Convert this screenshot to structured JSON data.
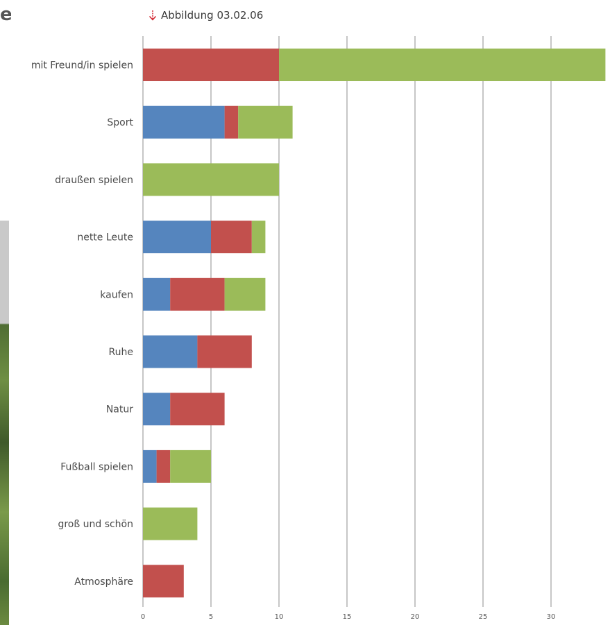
{
  "page": {
    "side_heading_fragment": "e",
    "figure_caption": "Abbildung 03.02.06"
  },
  "colors": {
    "series_1": "#5585be",
    "series_2": "#c2504d",
    "series_3": "#9bbb59",
    "gridline": "#8c8c8c",
    "caption_arrow": "#d22630"
  },
  "chart_data": {
    "type": "bar",
    "orientation": "horizontal",
    "stacked": true,
    "categories": [
      "mit Freund/in spielen",
      "Sport",
      "draußen spielen",
      "nette Leute",
      "kaufen",
      "Ruhe",
      "Natur",
      "Fußball spielen",
      "groß und schön",
      "Atmosphäre"
    ],
    "series": [
      {
        "color": "#5585be",
        "values": [
          0,
          6,
          0,
          5,
          2,
          4,
          2,
          1,
          0,
          0
        ]
      },
      {
        "color": "#c2504d",
        "values": [
          10,
          1,
          0,
          3,
          4,
          4,
          4,
          1,
          0,
          3
        ]
      },
      {
        "color": "#9bbb59",
        "values": [
          24,
          4,
          10,
          1,
          3,
          0,
          0,
          3,
          4,
          0
        ]
      }
    ],
    "xlim": [
      0,
      34
    ],
    "xticks": [
      0,
      5,
      10,
      15,
      20,
      25,
      30
    ],
    "xtick_labels": [
      "0",
      "5",
      "10",
      "15",
      "20",
      "25",
      "30"
    ],
    "grid": "vertical",
    "legend": "none"
  }
}
